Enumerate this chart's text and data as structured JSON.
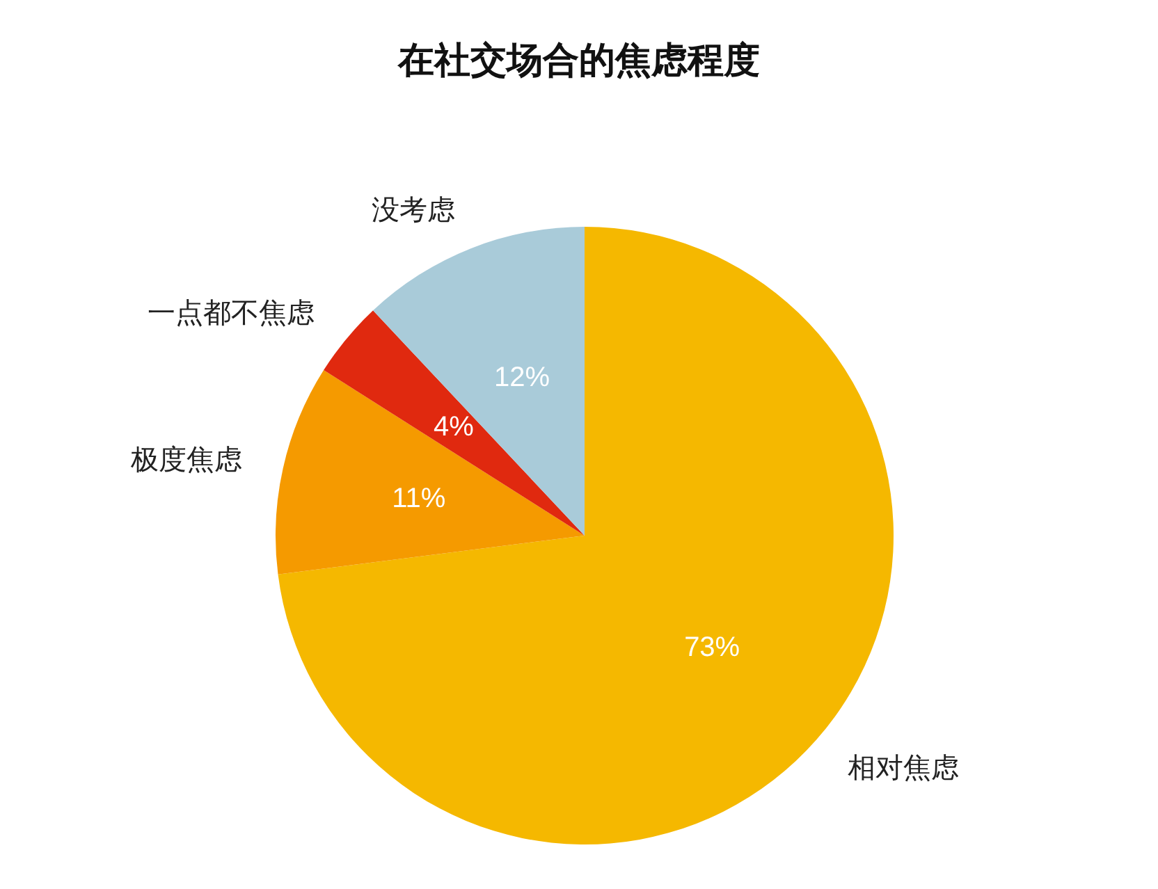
{
  "chart_data": {
    "type": "pie",
    "title": "在社交场合的焦虑程度",
    "categories": [
      "相对焦虑",
      "极度焦虑",
      "一点都不焦虑",
      "没考虑"
    ],
    "values": [
      73,
      11,
      4,
      12
    ],
    "colors": [
      "#f5b800",
      "#f59a00",
      "#e0290f",
      "#a9cbd9"
    ],
    "value_labels": [
      "73%",
      "11%",
      "4%",
      "12%"
    ]
  }
}
